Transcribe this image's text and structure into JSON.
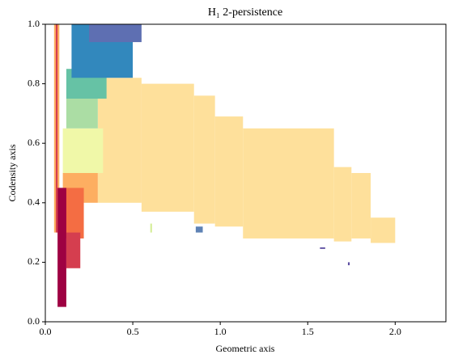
{
  "chart_data": {
    "type": "rectangles",
    "title": "H₁ 2-persistence",
    "x_label": "Geometric axis",
    "y_label": "Codensity axis",
    "xlim": [
      0,
      2.29
    ],
    "ylim": [
      0,
      1
    ],
    "xticks": [
      {
        "value": 0,
        "label": "0.0"
      },
      {
        "value": 0.5,
        "label": "0.5"
      },
      {
        "value": 1,
        "label": "1.0"
      },
      {
        "value": 1.5,
        "label": "1.5"
      },
      {
        "value": 2,
        "label": "2.0"
      }
    ],
    "yticks": [
      {
        "value": 0,
        "label": "0.0"
      },
      {
        "value": 0.2,
        "label": "0.2"
      },
      {
        "value": 0.4,
        "label": "0.4"
      },
      {
        "value": 0.6,
        "label": "0.6"
      },
      {
        "value": 0.8,
        "label": "0.8"
      },
      {
        "value": 1,
        "label": "1.0"
      }
    ],
    "rects": [
      {
        "x": [
          0.3,
          0.55
        ],
        "y": [
          0.4,
          0.82
        ],
        "color": "#fee09b"
      },
      {
        "x": [
          0.55,
          0.85
        ],
        "y": [
          0.37,
          0.8
        ],
        "color": "#fee09b"
      },
      {
        "x": [
          0.85,
          0.97
        ],
        "y": [
          0.33,
          0.76
        ],
        "color": "#fee09b"
      },
      {
        "x": [
          0.97,
          1.13
        ],
        "y": [
          0.32,
          0.69
        ],
        "color": "#fee09b"
      },
      {
        "x": [
          1.13,
          1.65
        ],
        "y": [
          0.28,
          0.65
        ],
        "color": "#fee09b"
      },
      {
        "x": [
          1.65,
          1.75
        ],
        "y": [
          0.27,
          0.52
        ],
        "color": "#fee09b"
      },
      {
        "x": [
          1.75,
          1.86
        ],
        "y": [
          0.28,
          0.5
        ],
        "color": "#fee09b"
      },
      {
        "x": [
          1.86,
          2.0
        ],
        "y": [
          0.265,
          0.35
        ],
        "color": "#fee09b"
      },
      {
        "x": [
          0.05,
          0.08
        ],
        "y": [
          0.3,
          1.0
        ],
        "color": "#fdae61"
      },
      {
        "x": [
          0.1,
          0.33
        ],
        "y": [
          0.5,
          0.65
        ],
        "color": "#f0f8a8"
      },
      {
        "x": [
          0.1,
          0.3
        ],
        "y": [
          0.4,
          0.5
        ],
        "color": "#fdae61"
      },
      {
        "x": [
          0.08,
          0.22
        ],
        "y": [
          0.28,
          0.45
        ],
        "color": "#f46d43"
      },
      {
        "x": [
          0.07,
          0.12
        ],
        "y": [
          0.05,
          0.45
        ],
        "color": "#9e0142"
      },
      {
        "x": [
          0.12,
          0.2
        ],
        "y": [
          0.18,
          0.3
        ],
        "color": "#d53e4f"
      },
      {
        "x": [
          0.06,
          0.07
        ],
        "y": [
          0.3,
          1.0
        ],
        "color": "#d53e4f"
      },
      {
        "x": [
          0.12,
          0.3
        ],
        "y": [
          0.65,
          0.78
        ],
        "color": "#abdda4"
      },
      {
        "x": [
          0.12,
          0.35
        ],
        "y": [
          0.75,
          0.85
        ],
        "color": "#66c2a5"
      },
      {
        "x": [
          0.15,
          0.5
        ],
        "y": [
          0.82,
          1.0
        ],
        "color": "#3288bd"
      },
      {
        "x": [
          0.25,
          0.55
        ],
        "y": [
          0.94,
          1.0
        ],
        "color": "#5e6fb2"
      },
      {
        "x": [
          0.86,
          0.9
        ],
        "y": [
          0.3,
          0.32
        ],
        "color": "#5e82b5"
      },
      {
        "x": [
          1.57,
          1.6
        ],
        "y": [
          0.245,
          0.25
        ],
        "color": "#5e4fa2"
      },
      {
        "x": [
          1.73,
          1.74
        ],
        "y": [
          0.19,
          0.2
        ],
        "color": "#5e4fa2"
      },
      {
        "x": [
          0.6,
          0.61
        ],
        "y": [
          0.3,
          0.33
        ],
        "color": "#d5ee9a"
      }
    ]
  }
}
